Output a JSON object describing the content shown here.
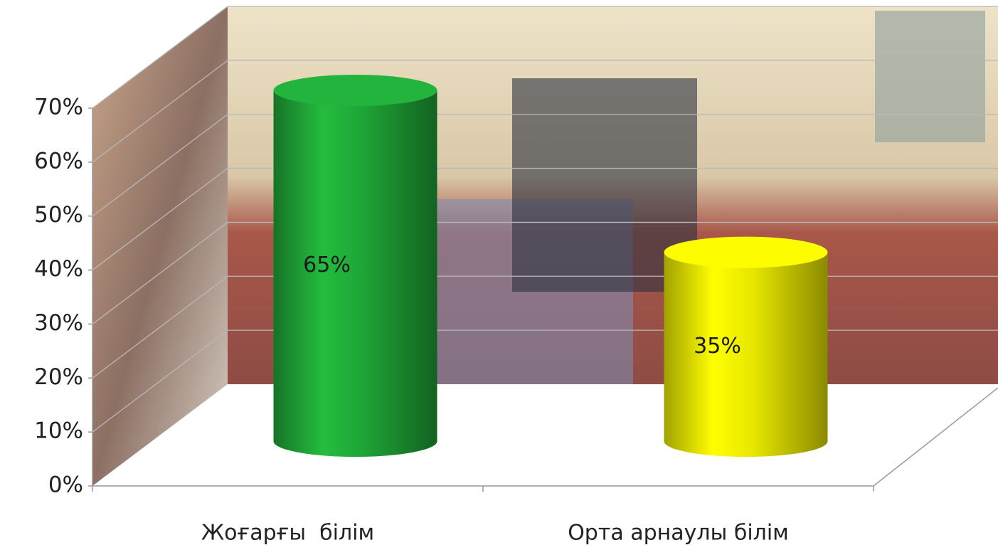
{
  "chart_data": {
    "type": "cylinder-bar",
    "categories": [
      "Жоғарғы  білім",
      "Орта арнаулы білім"
    ],
    "values": [
      65,
      35
    ],
    "value_labels": [
      "65%",
      "35%"
    ],
    "colors": [
      "#1fa437",
      "#e6e600"
    ],
    "ylim": [
      0,
      70
    ],
    "yticks": [
      {
        "value": 0,
        "label": "0%"
      },
      {
        "value": 10,
        "label": "10%"
      },
      {
        "value": 20,
        "label": "20%"
      },
      {
        "value": 30,
        "label": "30%"
      },
      {
        "value": 40,
        "label": "40%"
      },
      {
        "value": 50,
        "label": "50%"
      },
      {
        "value": 60,
        "label": "60%"
      },
      {
        "value": 70,
        "label": "70%"
      }
    ],
    "grid": true
  }
}
